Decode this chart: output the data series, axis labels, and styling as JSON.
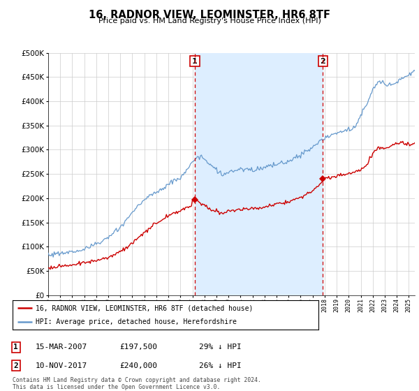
{
  "title": "16, RADNOR VIEW, LEOMINSTER, HR6 8TF",
  "subtitle": "Price paid vs. HM Land Registry's House Price Index (HPI)",
  "legend_line1": "16, RADNOR VIEW, LEOMINSTER, HR6 8TF (detached house)",
  "legend_line2": "HPI: Average price, detached house, Herefordshire",
  "annotation1_date": "15-MAR-2007",
  "annotation1_price": "£197,500",
  "annotation1_hpi": "29% ↓ HPI",
  "annotation2_date": "10-NOV-2017",
  "annotation2_price": "£240,000",
  "annotation2_hpi": "26% ↓ HPI",
  "footnote1": "Contains HM Land Registry data © Crown copyright and database right 2024.",
  "footnote2": "This data is licensed under the Open Government Licence v3.0.",
  "red_color": "#cc0000",
  "blue_color": "#6699cc",
  "shading_color": "#ddeeff",
  "grid_color": "#cccccc",
  "bg_color": "#ffffff",
  "ylim": [
    0,
    500000
  ],
  "yticks": [
    0,
    50000,
    100000,
    150000,
    200000,
    250000,
    300000,
    350000,
    400000,
    450000,
    500000
  ],
  "purchase1_x": 2007.2,
  "purchase1_y": 197500,
  "purchase2_x": 2017.86,
  "purchase2_y": 240000,
  "xmin": 1995.0,
  "xmax": 2025.5
}
